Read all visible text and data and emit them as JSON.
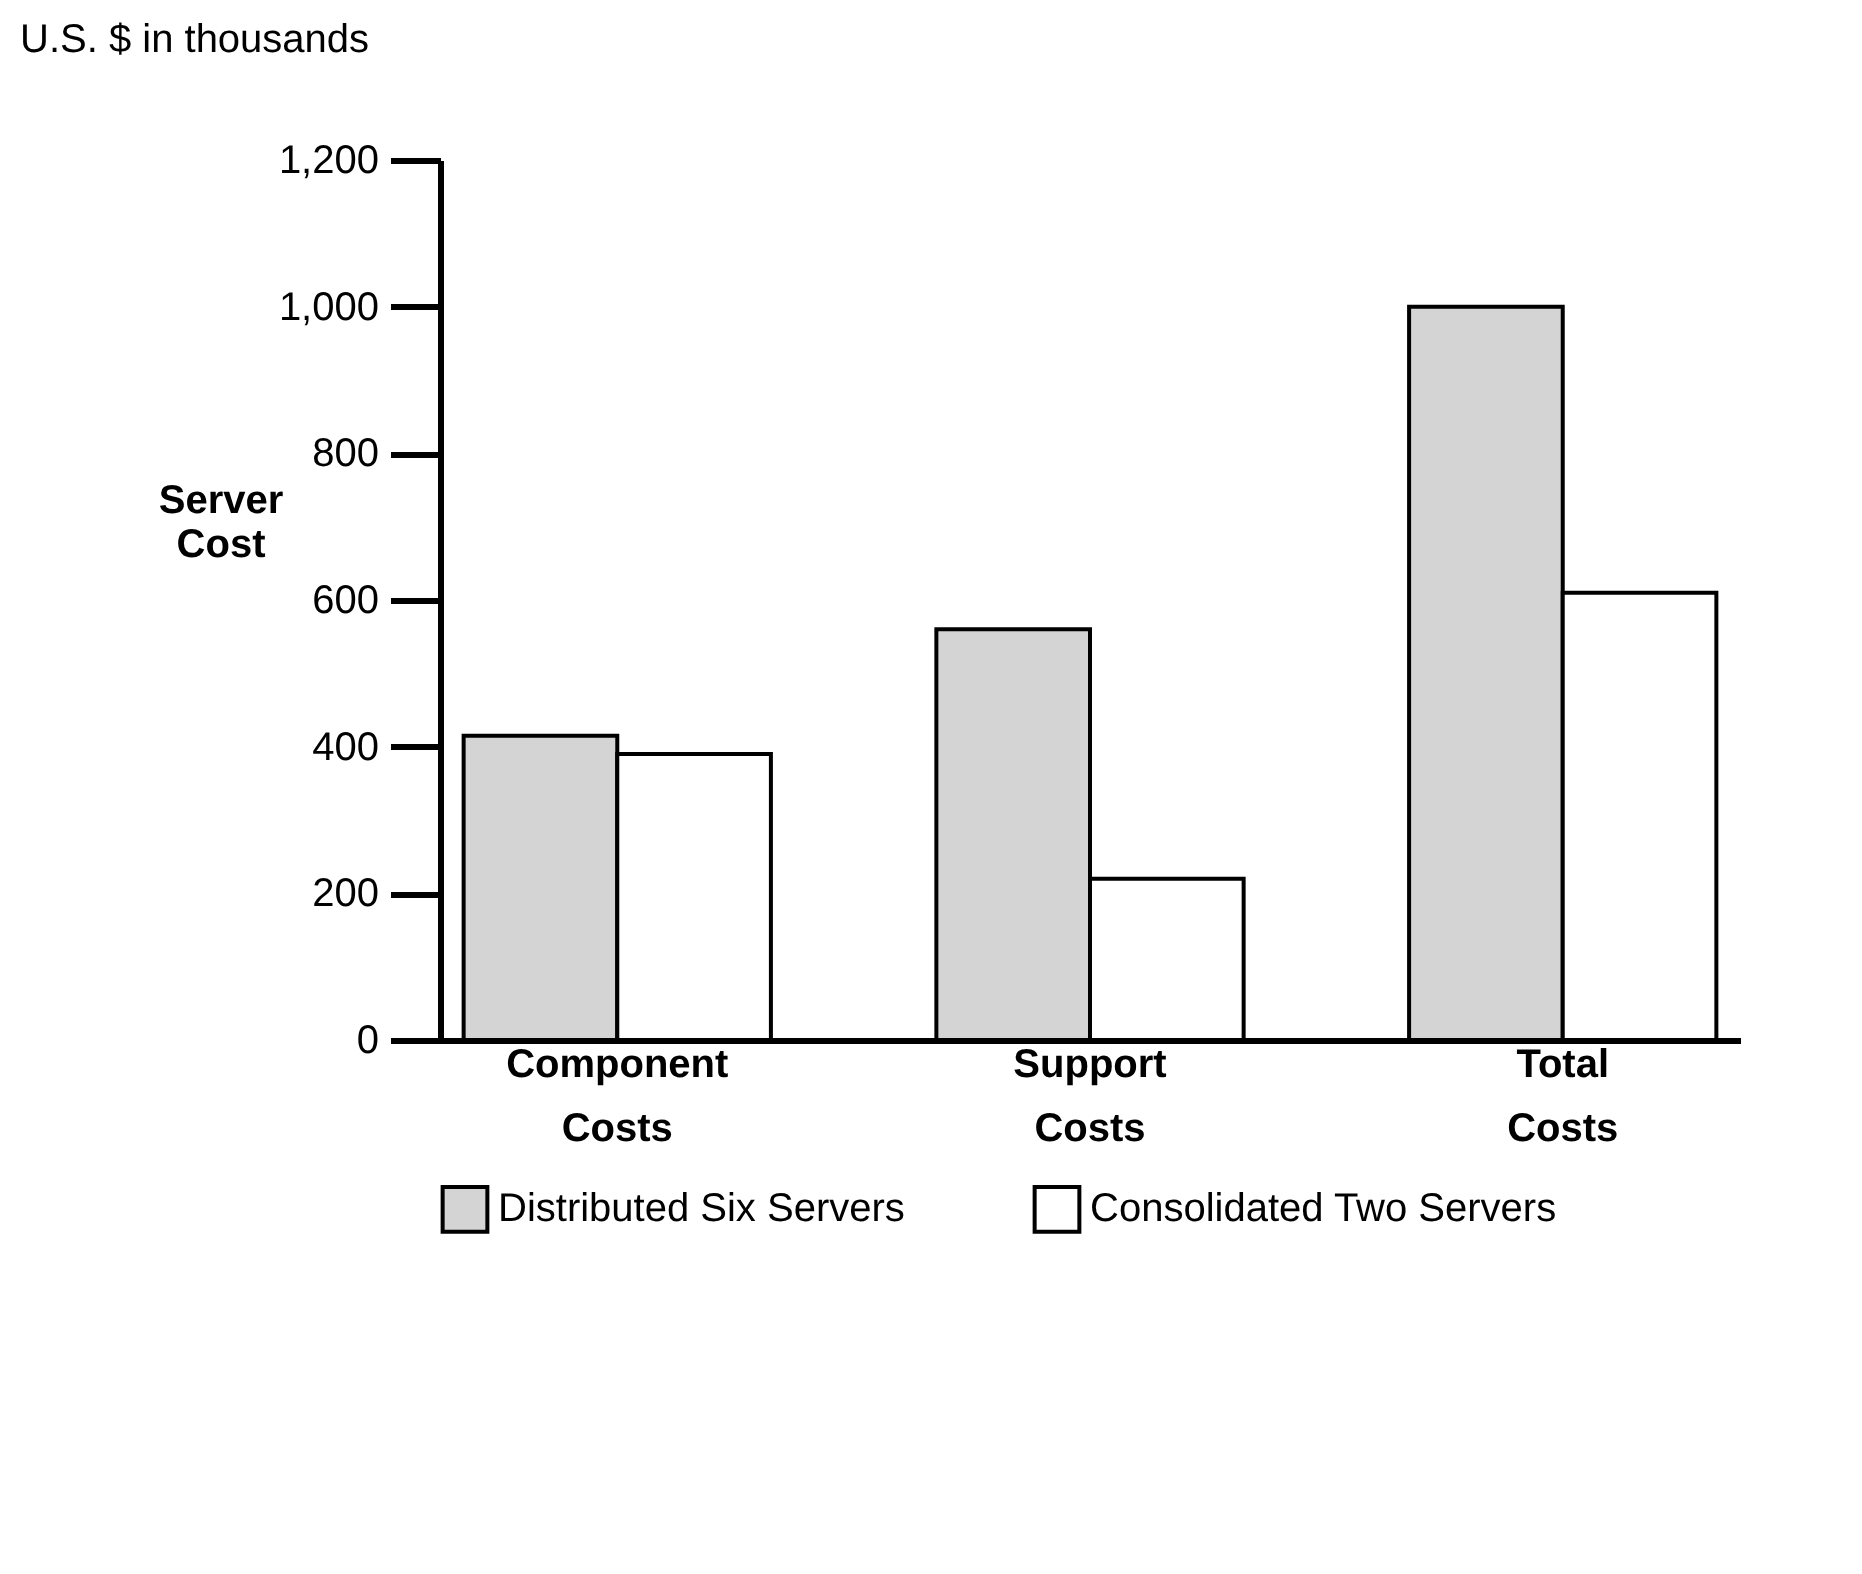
{
  "chart_data": {
    "type": "bar",
    "subtitle": "U.S. $ in thousands",
    "ylabel": "Server Cost",
    "categories": [
      "Component Costs",
      "Support Costs",
      "Total Costs"
    ],
    "series": [
      {
        "name": "Distributed Six Servers",
        "color": "#d4d4d4",
        "values": [
          415,
          560,
          1000
        ]
      },
      {
        "name": "Consolidated Two Servers",
        "color": "#ffffff",
        "values": [
          390,
          220,
          610
        ]
      }
    ],
    "ylim": [
      0,
      1200
    ],
    "yticks": [
      0,
      200,
      400,
      600,
      800,
      {
        "value": 1000,
        "label": "1,000"
      },
      {
        "value": 1200,
        "label": "1,200"
      }
    ],
    "grid": false,
    "legend": "bottom"
  }
}
